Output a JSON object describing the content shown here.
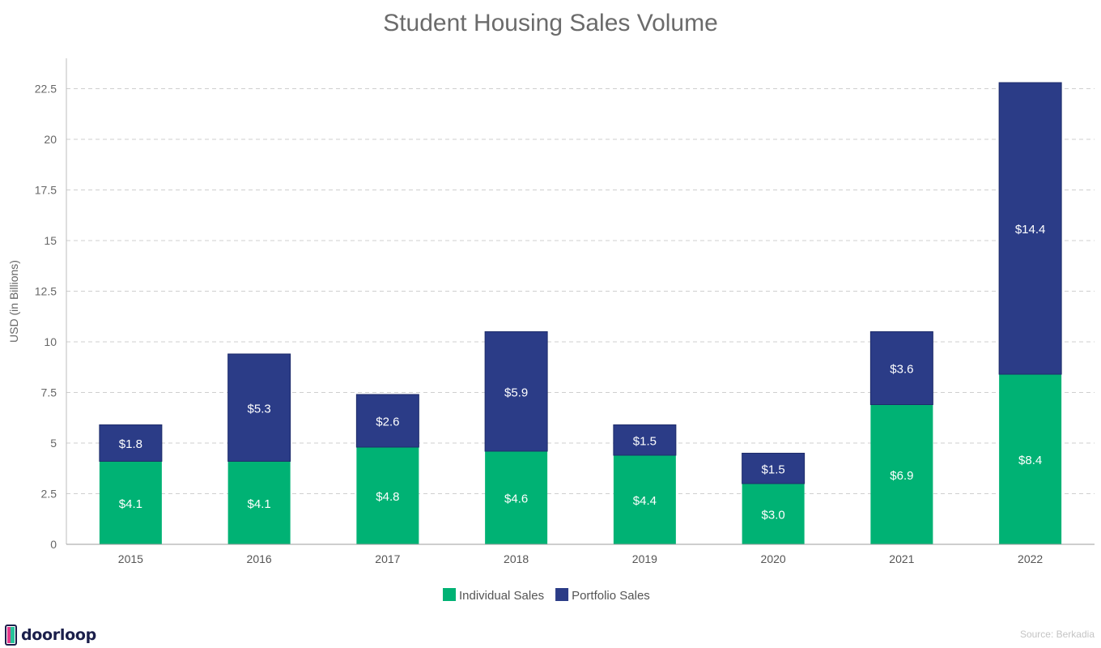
{
  "chart_data": {
    "type": "bar",
    "stacked": true,
    "title": "Student Housing Sales Volume",
    "xlabel": "",
    "ylabel": "USD (in Billions)",
    "ylim": [
      0,
      24
    ],
    "yticks": [
      0,
      2.5,
      5,
      7.5,
      10,
      12.5,
      15,
      17.5,
      20,
      22.5
    ],
    "ytick_labels": [
      "0",
      "2.5",
      "5",
      "7.5",
      "10",
      "12.5",
      "15",
      "17.5",
      "20",
      "22.5"
    ],
    "grid": true,
    "legend_position": "bottom",
    "categories": [
      "2015",
      "2016",
      "2017",
      "2018",
      "2019",
      "2020",
      "2021",
      "2022"
    ],
    "series": [
      {
        "name": "Individual Sales",
        "color": "#00b274",
        "values": [
          4.1,
          4.1,
          4.8,
          4.6,
          4.4,
          3.0,
          6.9,
          8.4
        ],
        "labels": [
          "$4.1",
          "$4.1",
          "$4.8",
          "$4.6",
          "$4.4",
          "$3.0",
          "$6.9",
          "$8.4"
        ]
      },
      {
        "name": "Portfolio Sales",
        "color": "#2b3c87",
        "values": [
          1.8,
          5.3,
          2.6,
          5.9,
          1.5,
          1.5,
          3.6,
          14.4
        ],
        "labels": [
          "$1.8",
          "$5.3",
          "$2.6",
          "$5.9",
          "$1.5",
          "$1.5",
          "$3.6",
          "$14.4"
        ]
      }
    ]
  },
  "branding": {
    "logo_text": "doorloop",
    "logo_icon": "door-icon"
  },
  "footer": {
    "source": "Source: Berkadia"
  }
}
